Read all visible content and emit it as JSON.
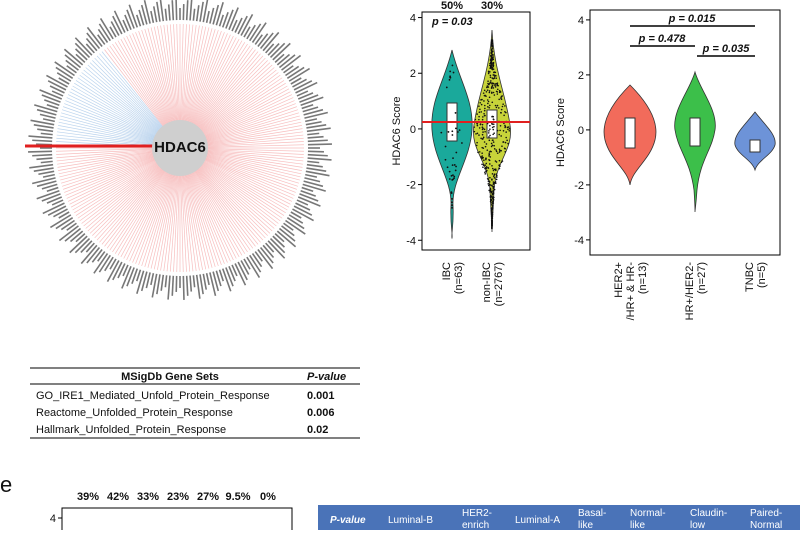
{
  "network": {
    "center": "HDAC6"
  },
  "violin_ibc": {
    "percent_labels": [
      "50%",
      "30%"
    ],
    "p_value": "p = 0.03",
    "y_label": "HDAC6 Score",
    "ylim": [
      -4.35,
      4.2
    ],
    "yticks": [
      -4,
      -2,
      0,
      2,
      4
    ],
    "categories": [
      [
        "IBC",
        "(n=63)"
      ],
      [
        "non-IBC",
        "(n=2767)"
      ]
    ],
    "colors": [
      "#1aa99b",
      "#c8d43a"
    ]
  },
  "violin_subtype": {
    "y_label": "HDAC6 Score",
    "ylim": [
      -4.55,
      4.36
    ],
    "yticks": [
      -4,
      -2,
      0,
      2,
      4
    ],
    "categories": [
      [
        "HER2+",
        "/HR+ & HR-",
        "(n=13)"
      ],
      [
        "HR+/HER2-",
        "(n=27)"
      ],
      [
        "TNBC",
        "(n=5)"
      ]
    ],
    "colors": [
      "#f26b5b",
      "#3cbf4a",
      "#6d93d8"
    ],
    "comparisons": [
      "p = 0.015",
      "p = 0.478",
      "p = 0.035"
    ]
  },
  "table": {
    "header": [
      "MSigDb Gene Sets",
      "P-value"
    ],
    "rows": [
      [
        "GO_IRE1_Mediated_Unfold_Protein_Response",
        0.001
      ],
      [
        "Reactome_Unfolded_Protein_Response",
        0.006
      ],
      [
        "Hallmark_Unfolded_Protein_Response",
        0.02
      ]
    ]
  },
  "panel_e": {
    "label": "e",
    "percent_labels": [
      "39%",
      "42%",
      "33%",
      "23%",
      "27%",
      "9.5%",
      "0%"
    ],
    "ytick": 4,
    "table_header": [
      [
        "P-value"
      ],
      [
        "Luminal-B"
      ],
      [
        "HER2-",
        "enrich"
      ],
      [
        "Luminal-A"
      ],
      [
        "Basal-",
        "like"
      ],
      [
        "Normal-",
        "like"
      ],
      [
        "Claudin-",
        "low"
      ],
      [
        "Paired-",
        "Normal"
      ]
    ]
  }
}
